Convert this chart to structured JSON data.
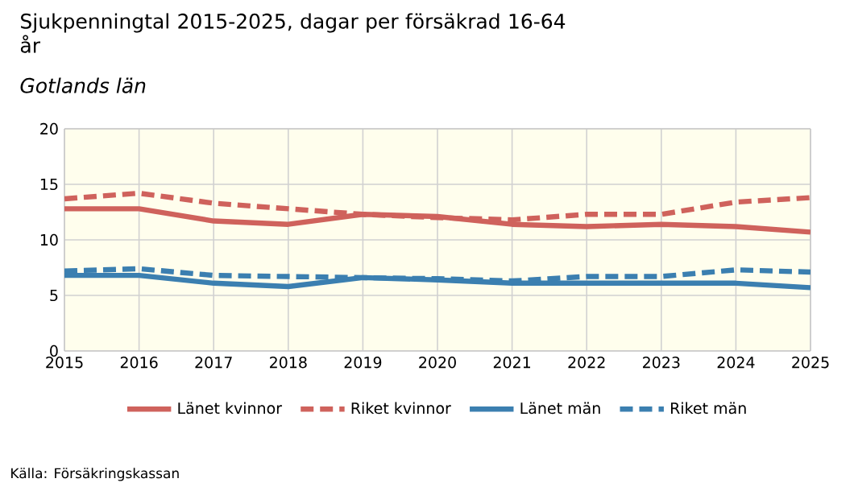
{
  "chart_data": {
    "type": "line",
    "title": "Sjukpenningtal 2015-2025, dagar per försäkrad 16-64 år",
    "subtitle": "Gotlands län",
    "x": [
      2015,
      2016,
      2017,
      2018,
      2019,
      2020,
      2021,
      2022,
      2023,
      2024,
      2025
    ],
    "series": [
      {
        "name": "Länet kvinnor",
        "color": "#cf625c",
        "line_style": "solid",
        "values": [
          12.8,
          12.8,
          11.7,
          11.4,
          12.3,
          12.1,
          11.4,
          11.2,
          11.4,
          11.2,
          10.7
        ]
      },
      {
        "name": "Riket kvinnor",
        "color": "#cf625c",
        "line_style": "dashed",
        "values": [
          13.7,
          14.2,
          13.3,
          12.8,
          12.3,
          12.0,
          11.8,
          12.3,
          12.3,
          13.4,
          13.8
        ]
      },
      {
        "name": "Länet män",
        "color": "#3b7fb0",
        "line_style": "solid",
        "values": [
          6.8,
          6.8,
          6.1,
          5.8,
          6.6,
          6.4,
          6.1,
          6.1,
          6.1,
          6.1,
          5.7
        ]
      },
      {
        "name": "Riket män",
        "color": "#3b7fb0",
        "line_style": "dashed",
        "values": [
          7.2,
          7.4,
          6.8,
          6.7,
          6.6,
          6.5,
          6.3,
          6.7,
          6.7,
          7.3,
          7.1
        ]
      }
    ],
    "xlim": [
      2015,
      2025
    ],
    "ylim": [
      0,
      20
    ],
    "xticks": [
      2015,
      2016,
      2017,
      2018,
      2019,
      2020,
      2021,
      2022,
      2023,
      2024,
      2025
    ],
    "yticks": [
      0,
      5,
      10,
      15,
      20
    ],
    "grid": true,
    "legend": "bottom",
    "marker": "none",
    "annotations": [
      "Källa: Försäkringskassan"
    ]
  }
}
